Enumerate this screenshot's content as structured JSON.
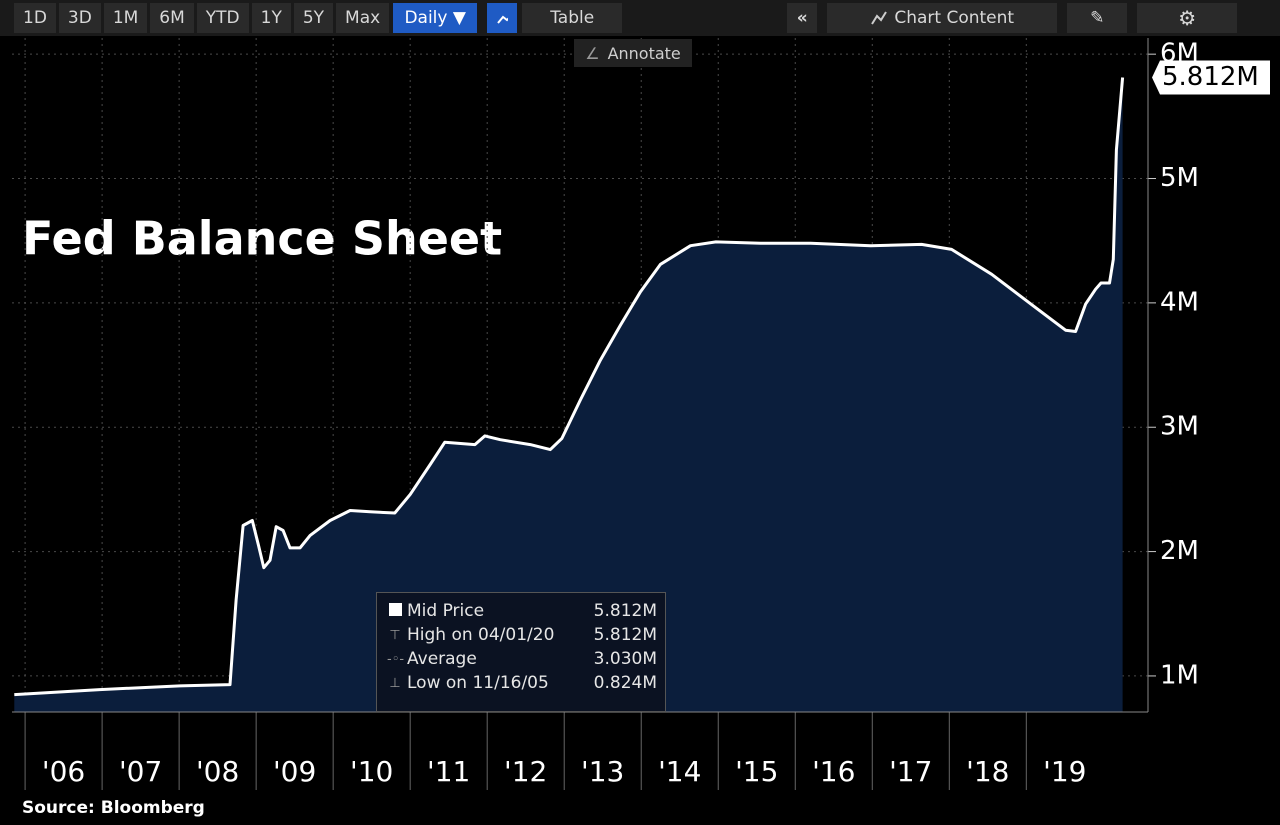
{
  "toolbar": {
    "ranges": [
      "1D",
      "3D",
      "1M",
      "6M",
      "YTD",
      "1Y",
      "5Y",
      "Max"
    ],
    "frequency": "Daily ▼",
    "table": "Table",
    "chart_content": "Chart Content",
    "annotate": "Annotate"
  },
  "chart_data": {
    "type": "area",
    "title": "Fed Balance Sheet",
    "source": "Source: Bloomberg",
    "x": [
      2005.86,
      2006.97,
      2008.01,
      2008.66,
      2008.74,
      2008.83,
      2008.95,
      2009.03,
      2009.1,
      2009.18,
      2009.26,
      2009.35,
      2009.44,
      2009.57,
      2009.7,
      2009.96,
      2010.22,
      2010.48,
      2010.8,
      2011.0,
      2011.26,
      2011.45,
      2011.84,
      2011.97,
      2012.17,
      2012.56,
      2012.82,
      2012.97,
      2013.21,
      2013.47,
      2013.73,
      2013.99,
      2014.25,
      2014.64,
      2014.97,
      2015.55,
      2016.2,
      2016.98,
      2017.64,
      2018.03,
      2018.55,
      2019.06,
      2019.51,
      2019.64,
      2019.77,
      2019.9,
      2019.97,
      2020.08,
      2020.13,
      2020.17,
      2020.25
    ],
    "values": [
      0.85,
      0.89,
      0.92,
      0.93,
      1.61,
      2.21,
      2.25,
      2.05,
      1.87,
      1.93,
      2.2,
      2.17,
      2.03,
      2.03,
      2.13,
      2.25,
      2.33,
      2.32,
      2.31,
      2.46,
      2.7,
      2.88,
      2.86,
      2.93,
      2.9,
      2.86,
      2.82,
      2.91,
      3.22,
      3.54,
      3.82,
      4.09,
      4.31,
      4.46,
      4.49,
      4.48,
      4.48,
      4.46,
      4.47,
      4.43,
      4.23,
      3.99,
      3.78,
      3.77,
      3.99,
      4.11,
      4.16,
      4.16,
      4.35,
      5.23,
      5.812
    ],
    "color": "#ffffff",
    "fill": "#0b1e3c",
    "xlim": [
      2005.83,
      2020.58
    ],
    "xticks": [
      {
        "value": 2006,
        "label": "'06"
      },
      {
        "value": 2007,
        "label": "'07"
      },
      {
        "value": 2008,
        "label": "'08"
      },
      {
        "value": 2009,
        "label": "'09"
      },
      {
        "value": 2010,
        "label": "'10"
      },
      {
        "value": 2011,
        "label": "'11"
      },
      {
        "value": 2012,
        "label": "'12"
      },
      {
        "value": 2013,
        "label": "'13"
      },
      {
        "value": 2014,
        "label": "'14"
      },
      {
        "value": 2015,
        "label": "'15"
      },
      {
        "value": 2016,
        "label": "'16"
      },
      {
        "value": 2017,
        "label": "'17"
      },
      {
        "value": 2018,
        "label": "'18"
      },
      {
        "value": 2019,
        "label": "'19"
      }
    ],
    "ylim": [
      0.71,
      6.13
    ],
    "yticks": [
      {
        "value": 1,
        "label": "1M"
      },
      {
        "value": 2,
        "label": "2M"
      },
      {
        "value": 3,
        "label": "3M"
      },
      {
        "value": 4,
        "label": "4M"
      },
      {
        "value": 5,
        "label": "5M"
      },
      {
        "value": 6,
        "label": "6M"
      }
    ],
    "grid": true,
    "last_price": {
      "value": 5.812,
      "label": "5.812M"
    },
    "legend": [
      {
        "name": "Mid Price",
        "value": "5.812M"
      },
      {
        "name": "High on 04/01/20",
        "value": "5.812M"
      },
      {
        "name": "Average",
        "value": "3.030M"
      },
      {
        "name": "Low on 11/16/05",
        "value": "0.824M"
      }
    ]
  }
}
